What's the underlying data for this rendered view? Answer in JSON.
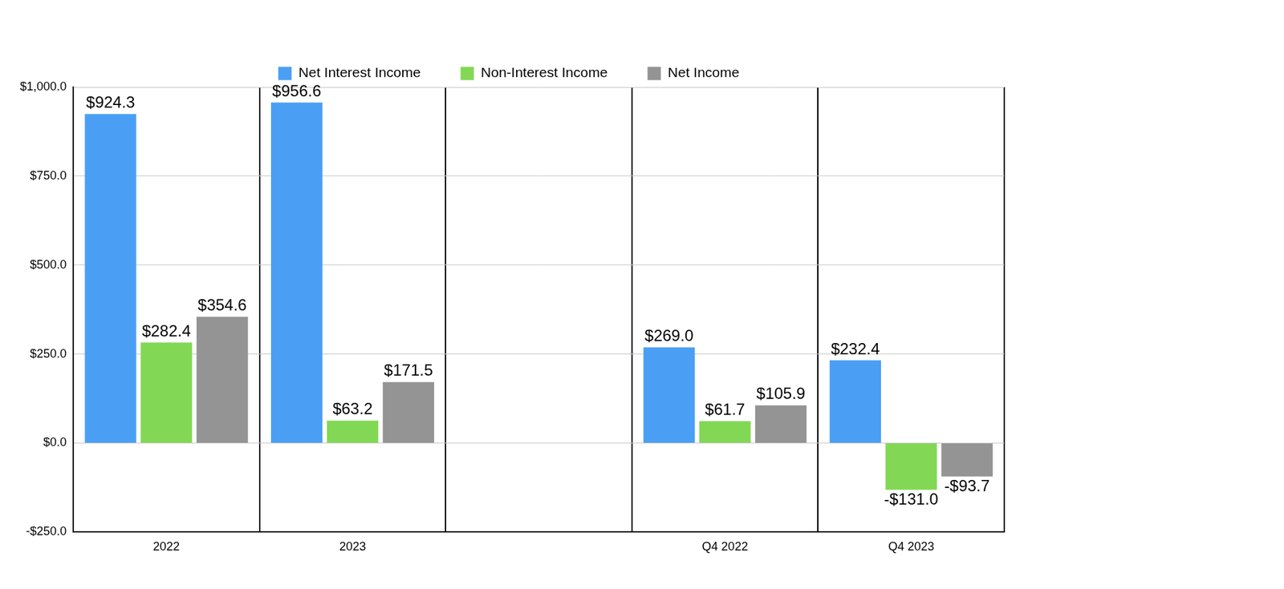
{
  "chart_data": {
    "type": "bar",
    "categories": [
      "2022",
      "2023",
      null,
      "Q4 2022",
      "Q4 2023"
    ],
    "series": [
      {
        "name": "Net Interest Income",
        "color": "#4a9ff5",
        "values": [
          924.3,
          956.6,
          null,
          269.0,
          232.4
        ],
        "value_labels": [
          "$924.3",
          "$956.6",
          null,
          "$269.0",
          "$232.4"
        ]
      },
      {
        "name": "Non-Interest Income",
        "color": "#82d855",
        "values": [
          282.4,
          63.2,
          null,
          61.7,
          -131.0
        ],
        "value_labels": [
          "$282.4",
          "$63.2",
          null,
          "$61.7",
          "-$131.0"
        ]
      },
      {
        "name": "Net Income",
        "color": "#949494",
        "values": [
          354.6,
          171.5,
          null,
          105.9,
          -93.7
        ],
        "value_labels": [
          "$354.6",
          "$171.5",
          null,
          "$105.9",
          "-$93.7"
        ]
      }
    ],
    "ylim": [
      -250,
      1000
    ],
    "yticks": [
      {
        "value": -250,
        "label": "-$250.0"
      },
      {
        "value": 0,
        "label": "$0.0"
      },
      {
        "value": 250,
        "label": "$250.0"
      },
      {
        "value": 500,
        "label": "$500.0"
      },
      {
        "value": 750,
        "label": "$750.0"
      },
      {
        "value": 1000,
        "label": "$1,000.0"
      }
    ],
    "grid": true,
    "legend": "top",
    "data_labels": true
  }
}
